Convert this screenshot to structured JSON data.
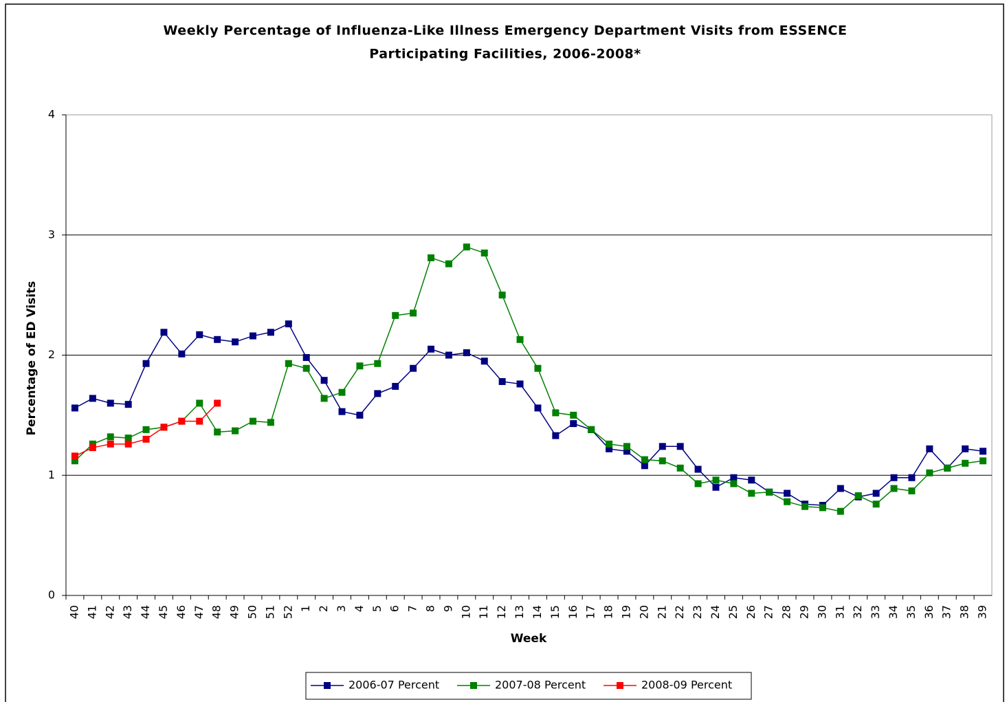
{
  "chart_data": {
    "type": "line",
    "title": [
      "Weekly Percentage of Influenza-Like Illness Emergency Department Visits from ESSENCE",
      "Participating Facilities, 2006-2008*"
    ],
    "x_label": "Week",
    "y_label": "Percentage of ED Visits",
    "categories": [
      "40",
      "41",
      "42",
      "43",
      "44",
      "45",
      "46",
      "47",
      "48",
      "49",
      "50",
      "51",
      "52",
      "1",
      "2",
      "3",
      "4",
      "5",
      "6",
      "7",
      "8",
      "9",
      "10",
      "11",
      "12",
      "13",
      "14",
      "15",
      "16",
      "17",
      "18",
      "19",
      "20",
      "21",
      "22",
      "23",
      "24",
      "25",
      "26",
      "27",
      "28",
      "29",
      "30",
      "31",
      "32",
      "33",
      "34",
      "35",
      "36",
      "37",
      "38",
      "39"
    ],
    "series": [
      {
        "name": "2006-07 Percent",
        "color": "#000080",
        "values": [
          1.56,
          1.64,
          1.6,
          1.59,
          1.93,
          2.19,
          2.01,
          2.17,
          2.13,
          2.11,
          2.16,
          2.19,
          2.26,
          1.98,
          1.79,
          1.53,
          1.5,
          1.68,
          1.74,
          1.89,
          2.05,
          2.0,
          2.02,
          1.95,
          1.78,
          1.76,
          1.56,
          1.33,
          1.43,
          1.38,
          1.22,
          1.2,
          1.08,
          1.24,
          1.24,
          1.05,
          0.9,
          0.98,
          0.96,
          0.86,
          0.85,
          0.76,
          0.75,
          0.89,
          0.82,
          0.85,
          0.98,
          0.98,
          1.22,
          1.06,
          1.22,
          1.2
        ]
      },
      {
        "name": "2007-08 Percent",
        "color": "#008000",
        "values": [
          1.12,
          1.26,
          1.32,
          1.31,
          1.38,
          1.4,
          1.45,
          1.6,
          1.36,
          1.37,
          1.45,
          1.44,
          1.93,
          1.89,
          1.64,
          1.69,
          1.91,
          1.93,
          2.33,
          2.35,
          2.81,
          2.76,
          2.9,
          2.85,
          2.5,
          2.13,
          1.89,
          1.52,
          1.5,
          1.38,
          1.26,
          1.24,
          1.13,
          1.12,
          1.06,
          0.93,
          0.96,
          0.93,
          0.85,
          0.86,
          0.78,
          0.74,
          0.73,
          0.7,
          0.83,
          0.76,
          0.89,
          0.87,
          1.02,
          1.06,
          1.1,
          1.12
        ]
      },
      {
        "name": "2008-09 Percent",
        "color": "#ff0000",
        "values": [
          1.16,
          1.23,
          1.26,
          1.26,
          1.3,
          1.4,
          1.45,
          1.45,
          1.6,
          null,
          null,
          null,
          null,
          null,
          null,
          null,
          null,
          null,
          null,
          null,
          null,
          null,
          null,
          null,
          null,
          null,
          null,
          null,
          null,
          null,
          null,
          null,
          null,
          null,
          null,
          null,
          null,
          null,
          null,
          null,
          null,
          null,
          null,
          null,
          null,
          null,
          null,
          null,
          null,
          null,
          null,
          null
        ]
      }
    ],
    "ylim": [
      0,
      4
    ],
    "yticks": [
      0,
      1,
      2,
      3,
      4
    ],
    "grid": true,
    "legend": "bottom"
  }
}
